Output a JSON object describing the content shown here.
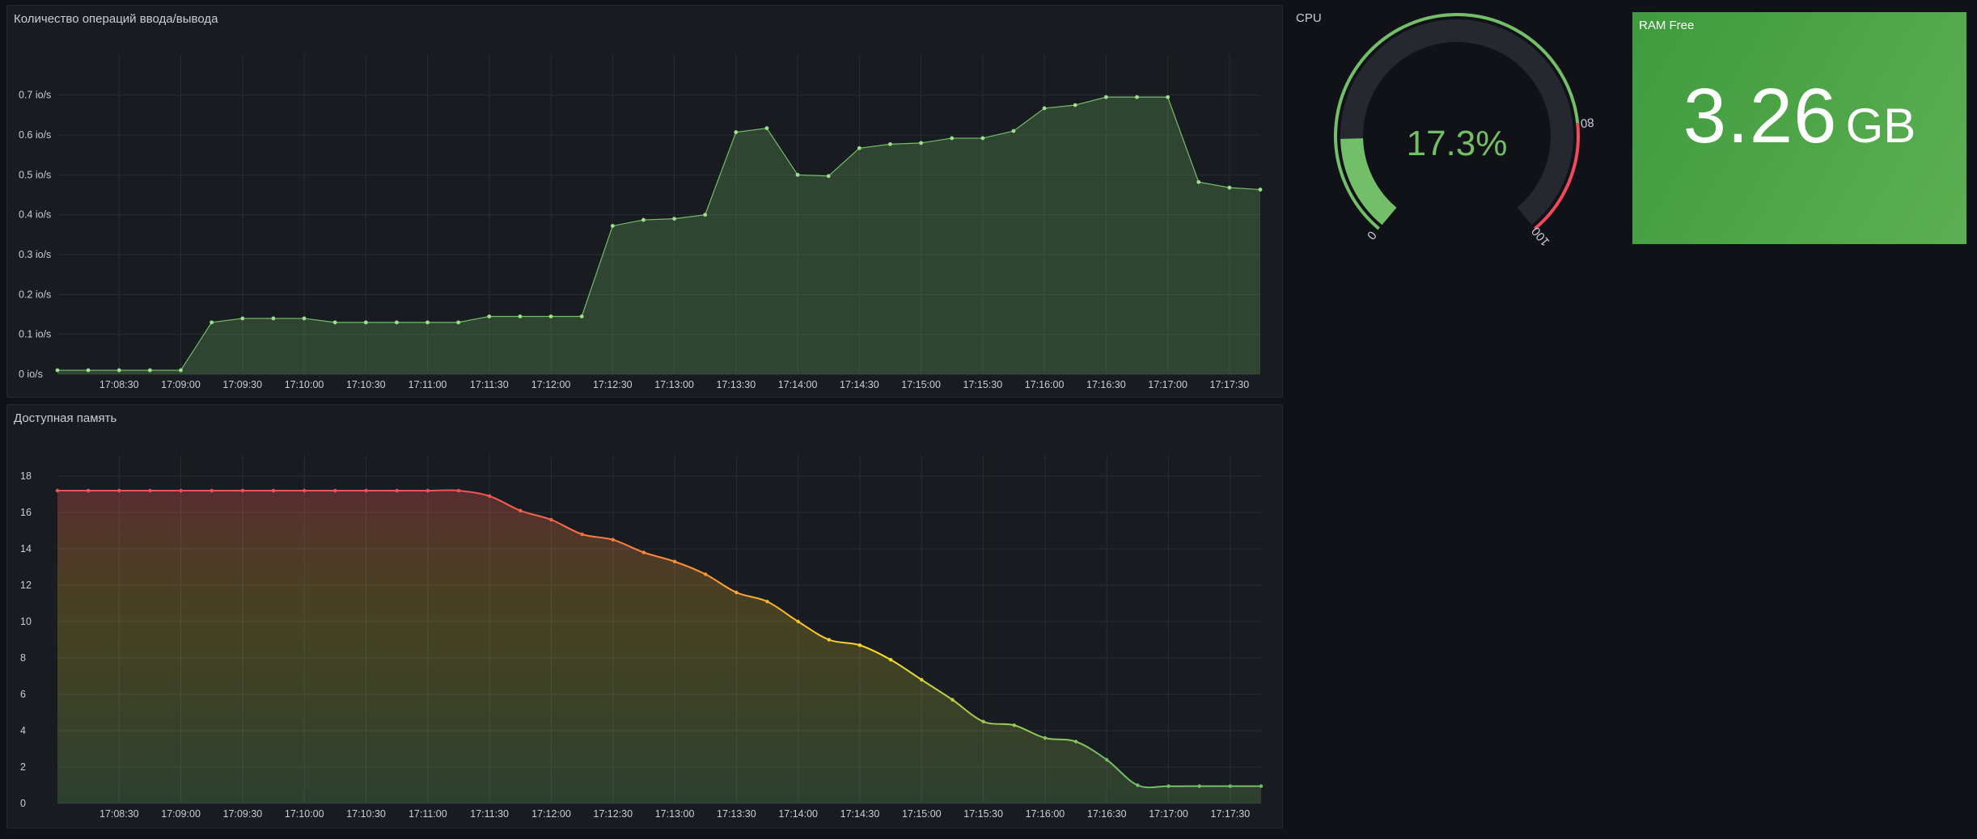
{
  "panels": {
    "io": {
      "title": "Количество операций ввода/вывода"
    },
    "mem": {
      "title": "Доступная память"
    },
    "cpu": {
      "title": "CPU"
    },
    "ram": {
      "title": "RAM Free",
      "value": "3.26",
      "unit": "GB"
    }
  },
  "chart_data": [
    {
      "type": "area",
      "title": "Количество операций ввода/вывода",
      "y_unit": "io/s",
      "ylim": [
        0,
        0.75
      ],
      "y_ticks": [
        0,
        0.1,
        0.2,
        0.3,
        0.4,
        0.5,
        0.6,
        0.7
      ],
      "y_tick_labels": [
        "0 io/s",
        "0.1 io/s",
        "0.2 io/s",
        "0.3 io/s",
        "0.4 io/s",
        "0.5 io/s",
        "0.6 io/s",
        "0.7 io/s"
      ],
      "x_ticks": [
        "17:08:30",
        "17:09:00",
        "17:09:30",
        "17:10:00",
        "17:10:30",
        "17:11:00",
        "17:11:30",
        "17:12:00",
        "17:12:30",
        "17:13:00",
        "17:13:30",
        "17:14:00",
        "17:14:30",
        "17:15:00",
        "17:15:30",
        "17:16:00",
        "17:16:30",
        "17:17:00",
        "17:17:30"
      ],
      "x": [
        "17:08:00",
        "17:08:15",
        "17:08:30",
        "17:08:45",
        "17:09:00",
        "17:09:15",
        "17:09:30",
        "17:09:45",
        "17:10:00",
        "17:10:15",
        "17:10:30",
        "17:10:45",
        "17:11:00",
        "17:11:15",
        "17:11:30",
        "17:11:45",
        "17:12:00",
        "17:12:15",
        "17:12:30",
        "17:12:45",
        "17:13:00",
        "17:13:15",
        "17:13:30",
        "17:13:45",
        "17:14:00",
        "17:14:15",
        "17:14:30",
        "17:14:45",
        "17:15:00",
        "17:15:15",
        "17:15:30",
        "17:15:45",
        "17:16:00",
        "17:16:15",
        "17:16:30",
        "17:16:45",
        "17:17:00",
        "17:17:15",
        "17:17:30",
        "17:17:45"
      ],
      "values": [
        0.01,
        0.01,
        0.01,
        0.01,
        0.01,
        0.13,
        0.14,
        0.14,
        0.14,
        0.13,
        0.13,
        0.13,
        0.13,
        0.13,
        0.145,
        0.145,
        0.145,
        0.145,
        0.372,
        0.387,
        0.39,
        0.4,
        0.607,
        0.617,
        0.5,
        0.497,
        0.567,
        0.577,
        0.58,
        0.592,
        0.592,
        0.61,
        0.667,
        0.675,
        0.695,
        0.695,
        0.695,
        0.482,
        0.468,
        0.463
      ],
      "color": "#73bf69",
      "grid": true,
      "legend": "none"
    },
    {
      "type": "area",
      "title": "Доступная память",
      "ylim": [
        0,
        18
      ],
      "y_ticks": [
        0,
        2,
        4,
        6,
        8,
        10,
        12,
        14,
        16,
        18
      ],
      "x_ticks": [
        "17:08:30",
        "17:09:00",
        "17:09:30",
        "17:10:00",
        "17:10:30",
        "17:11:00",
        "17:11:30",
        "17:12:00",
        "17:12:30",
        "17:13:00",
        "17:13:30",
        "17:14:00",
        "17:14:30",
        "17:15:00",
        "17:15:30",
        "17:16:00",
        "17:16:30",
        "17:17:00",
        "17:17:30"
      ],
      "x": [
        "17:08:00",
        "17:08:15",
        "17:08:30",
        "17:08:45",
        "17:09:00",
        "17:09:15",
        "17:09:30",
        "17:09:45",
        "17:10:00",
        "17:10:15",
        "17:10:30",
        "17:10:45",
        "17:11:00",
        "17:11:15",
        "17:11:30",
        "17:11:45",
        "17:12:00",
        "17:12:15",
        "17:12:30",
        "17:12:45",
        "17:13:00",
        "17:13:15",
        "17:13:30",
        "17:13:45",
        "17:14:00",
        "17:14:15",
        "17:14:30",
        "17:14:45",
        "17:15:00",
        "17:15:15",
        "17:15:30",
        "17:15:45",
        "17:16:00",
        "17:16:15",
        "17:16:30",
        "17:16:45",
        "17:17:00",
        "17:17:15",
        "17:17:30",
        "17:17:45"
      ],
      "values": [
        17.2,
        17.2,
        17.2,
        17.2,
        17.2,
        17.2,
        17.2,
        17.2,
        17.2,
        17.2,
        17.2,
        17.2,
        17.2,
        17.2,
        16.9,
        16.1,
        15.6,
        14.8,
        14.5,
        13.8,
        13.3,
        12.6,
        11.6,
        11.1,
        10.0,
        9.0,
        8.7,
        7.9,
        6.8,
        5.7,
        4.5,
        4.3,
        3.6,
        3.4,
        2.4,
        1.0,
        0.95,
        0.95,
        0.95,
        0.95
      ],
      "color_scheme": "green-yellow-red by value",
      "colors": [
        "#73bf69",
        "#fade2a",
        "#ff9830",
        "#f2495c"
      ],
      "grid": true,
      "legend": "none"
    },
    {
      "type": "gauge",
      "title": "CPU",
      "value": 17.3,
      "display": "17.3%",
      "min": 0,
      "max": 100,
      "threshold_labels": [
        "0",
        "80",
        "100"
      ],
      "thresholds": [
        {
          "value": 0,
          "color": "#73bf69"
        },
        {
          "value": 80,
          "color": "#f2495c"
        }
      ]
    }
  ]
}
